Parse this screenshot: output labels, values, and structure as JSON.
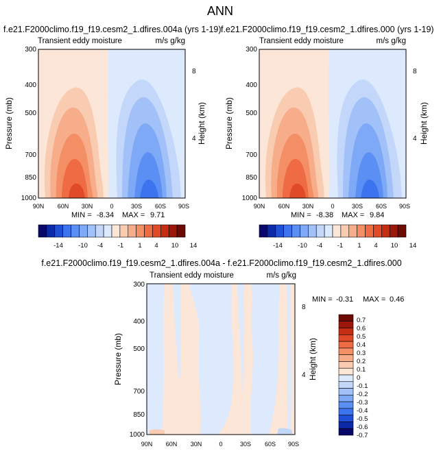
{
  "figure_title": "ANN",
  "colors": {
    "negative": [
      "#08086b",
      "#0a2aa8",
      "#1f4fd6",
      "#3c73ee",
      "#5b8ff3",
      "#7ea9f6",
      "#a1c1f8",
      "#c2d7fa",
      "#dde9fc"
    ],
    "positive": [
      "#fbe6d7",
      "#f9cbb0",
      "#f7ad8a",
      "#f48e65",
      "#ee6b43",
      "#e04a27",
      "#c52d12",
      "#9b1708",
      "#6e0a04"
    ]
  },
  "chart_data": [
    {
      "type": "contour",
      "title": "f.e21.F2000climo.f19_f19.cesm2_1.dfires.004a (yrs 1-19)",
      "left_label": "Transient eddy moisture",
      "right_label": "m/s g/kg",
      "ylabel": "Pressure (mb)",
      "y2label": "Height (km)",
      "x_ticks": [
        "90N",
        "60N",
        "30N",
        "0",
        "30S",
        "60S",
        "90S"
      ],
      "y_ticks": [
        "300",
        "400",
        "500",
        "700",
        "850",
        "1000"
      ],
      "y2_ticks": [
        "8",
        "4"
      ],
      "min_label": "MIN =",
      "min_value": "-8.34",
      "max_label": "MAX =",
      "max_value": "9.71",
      "colorbar_labels": [
        "-14",
        "-10",
        "-4",
        "-1",
        "1",
        "4",
        "10",
        "14"
      ],
      "features": [
        {
          "sign": "positive",
          "lat_range": [
            "70N",
            "0"
          ],
          "peak_lat": "35N",
          "peak_p": 950,
          "peak_value": 9.71
        },
        {
          "sign": "negative",
          "lat_range": [
            "0",
            "80S"
          ],
          "peak_lat": "45S",
          "peak_p": 950,
          "peak_value": -8.34
        }
      ]
    },
    {
      "type": "contour",
      "title": "f.e21.F2000climo.f19_f19.cesm2_1.dfires.000 (yrs 1-19)",
      "left_label": "Transient eddy moisture",
      "right_label": "m/s g/kg",
      "ylabel": "Pressure (mb)",
      "y2label": "Height (km)",
      "x_ticks": [
        "90N",
        "60N",
        "30N",
        "0",
        "30S",
        "60S",
        "90S"
      ],
      "y_ticks": [
        "300",
        "400",
        "500",
        "700",
        "850",
        "1000"
      ],
      "y2_ticks": [
        "8",
        "4"
      ],
      "min_label": "MIN =",
      "min_value": "-8.38",
      "max_label": "MAX =",
      "max_value": "9.84",
      "colorbar_labels": [
        "-14",
        "-10",
        "-4",
        "-1",
        "1",
        "4",
        "10",
        "14"
      ],
      "features": [
        {
          "sign": "positive",
          "lat_range": [
            "70N",
            "0"
          ],
          "peak_lat": "35N",
          "peak_p": 950,
          "peak_value": 9.84
        },
        {
          "sign": "negative",
          "lat_range": [
            "0",
            "80S"
          ],
          "peak_lat": "45S",
          "peak_p": 950,
          "peak_value": -8.38
        }
      ]
    },
    {
      "type": "contour",
      "title": "f.e21.F2000climo.f19_f19.cesm2_1.dfires.004a - f.e21.F2000climo.f19_f19.cesm2_1.dfires.000",
      "left_label": "Transient eddy moisture",
      "right_label": "m/s g/kg",
      "ylabel": "Pressure (mb)",
      "y2label": "Height (km)",
      "x_ticks": [
        "90N",
        "60N",
        "30N",
        "0",
        "30S",
        "60S",
        "90S"
      ],
      "y_ticks": [
        "300",
        "400",
        "500",
        "700",
        "850",
        "1000"
      ],
      "y2_ticks": [
        "8",
        "4"
      ],
      "min_label": "MIN =",
      "min_value": "-0.31",
      "max_label": "MAX =",
      "max_value": "0.46",
      "colorbar_labels": [
        "0.7",
        "0.6",
        "0.5",
        "0.4",
        "0.3",
        "0.2",
        "0.1",
        "0",
        "-0.1",
        "-0.2",
        "-0.3",
        "-0.4",
        "-0.5",
        "-0.6",
        "-0.7"
      ]
    }
  ]
}
